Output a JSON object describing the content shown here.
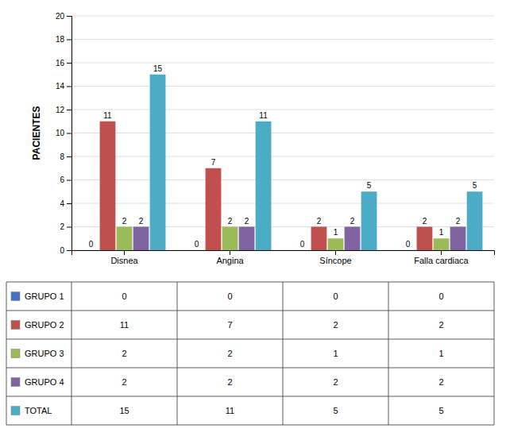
{
  "chart_data": {
    "type": "bar",
    "y_label": "PACIENTES",
    "categories": [
      "Disnea",
      "Angina",
      "Síncope",
      "Falla cardiaca"
    ],
    "series": [
      {
        "name": "GRUPO 1",
        "color": "#4472C4",
        "values": [
          0,
          0,
          0,
          0
        ]
      },
      {
        "name": "GRUPO 2",
        "color": "#C0504D",
        "values": [
          11,
          7,
          2,
          2
        ]
      },
      {
        "name": "GRUPO 3",
        "color": "#9BBB59",
        "values": [
          2,
          2,
          1,
          1
        ]
      },
      {
        "name": "GRUPO 4",
        "color": "#8064A2",
        "values": [
          2,
          2,
          2,
          2
        ]
      },
      {
        "name": "TOTAL",
        "color": "#4BACC6",
        "values": [
          15,
          11,
          5,
          5
        ]
      }
    ],
    "ylim": [
      0,
      20
    ],
    "yticks": [
      0,
      2,
      4,
      6,
      8,
      10,
      12,
      14,
      16,
      18,
      20
    ],
    "grid": true,
    "data_labels": true
  }
}
